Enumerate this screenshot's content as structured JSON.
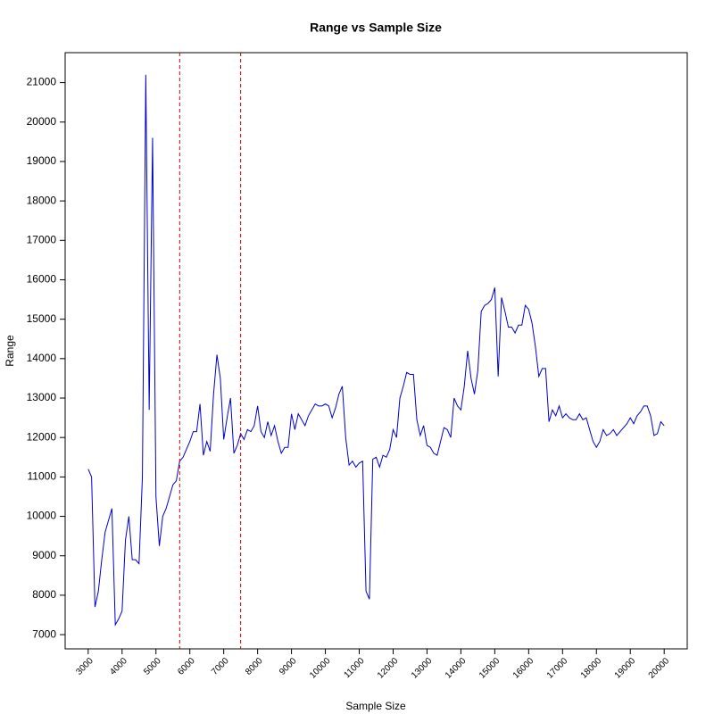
{
  "chart_data": {
    "type": "line",
    "title": "Range vs Sample Size",
    "x_label": "Sample Size",
    "y_label": "Range",
    "x": [
      3000,
      3100,
      3200,
      3300,
      3400,
      3500,
      3600,
      3700,
      3800,
      3900,
      4000,
      4100,
      4200,
      4300,
      4400,
      4500,
      4600,
      4700,
      4800,
      4900,
      5000,
      5100,
      5200,
      5300,
      5400,
      5500,
      5600,
      5700,
      5800,
      5900,
      6000,
      6100,
      6200,
      6300,
      6400,
      6500,
      6600,
      6700,
      6800,
      6900,
      7000,
      7100,
      7200,
      7300,
      7400,
      7500,
      7600,
      7700,
      7800,
      7900,
      8000,
      8100,
      8200,
      8300,
      8400,
      8500,
      8600,
      8700,
      8800,
      8900,
      9000,
      9100,
      9200,
      9300,
      9400,
      9500,
      9600,
      9700,
      9800,
      9900,
      10000,
      10100,
      10200,
      10300,
      10400,
      10500,
      10600,
      10700,
      10800,
      10900,
      11000,
      11100,
      11200,
      11300,
      11400,
      11500,
      11600,
      11700,
      11800,
      11900,
      12000,
      12100,
      12200,
      12300,
      12400,
      12500,
      12600,
      12700,
      12800,
      12900,
      13000,
      13100,
      13200,
      13300,
      13400,
      13500,
      13600,
      13700,
      13800,
      13900,
      14000,
      14100,
      14200,
      14300,
      14400,
      14500,
      14600,
      14700,
      14800,
      14900,
      15000,
      15100,
      15200,
      15300,
      15400,
      15500,
      15600,
      15700,
      15800,
      15900,
      16000,
      16100,
      16200,
      16300,
      16400,
      16500,
      16600,
      16700,
      16800,
      16900,
      17000,
      17100,
      17200,
      17300,
      17400,
      17500,
      17600,
      17700,
      17800,
      17900,
      18000,
      18100,
      18200,
      18300,
      18400,
      18500,
      18600,
      18700,
      18800,
      18900,
      19000,
      19100,
      19200,
      19300,
      19400,
      19500,
      19600,
      19700,
      19800,
      19900,
      20000
    ],
    "series": [
      {
        "color": "#0000cc",
        "values": [
          11200,
          11000,
          7700,
          8100,
          8900,
          9600,
          9900,
          10200,
          7250,
          7400,
          7600,
          9400,
          10000,
          8900,
          8900,
          8800,
          11000,
          21200,
          12700,
          19600,
          10500,
          9250,
          10000,
          10200,
          10500,
          10800,
          10900,
          11400,
          11500,
          11700,
          11900,
          12150,
          12150,
          12850,
          11550,
          11900,
          11650,
          13100,
          14100,
          13500,
          11950,
          12500,
          13000,
          11600,
          11800,
          12100,
          11950,
          12200,
          12150,
          12300,
          12800,
          12150,
          12000,
          12400,
          12050,
          12300,
          11900,
          11600,
          11750,
          11750,
          12600,
          12200,
          12600,
          12450,
          12300,
          12550,
          12700,
          12850,
          12800,
          12800,
          12850,
          12800,
          12500,
          12750,
          13100,
          13300,
          12000,
          11300,
          11400,
          11250,
          11350,
          11400,
          8100,
          7900,
          11450,
          11500,
          11250,
          11550,
          11500,
          11700,
          12200,
          12000,
          13000,
          13300,
          13650,
          13600,
          13600,
          12450,
          12050,
          12300,
          11800,
          11750,
          11600,
          11550,
          11900,
          12250,
          12200,
          12000,
          13000,
          12800,
          12700,
          13300,
          14200,
          13500,
          13100,
          13700,
          15200,
          15350,
          15400,
          15500,
          15800,
          13550,
          15550,
          15200,
          14800,
          14800,
          14650,
          14850,
          14850,
          15350,
          15250,
          14900,
          14300,
          13550,
          13750,
          13750,
          12400,
          12700,
          12550,
          12800,
          12500,
          12600,
          12500,
          12450,
          12450,
          12600,
          12450,
          12500,
          12200,
          11900,
          11750,
          11900,
          12200,
          12050,
          12100,
          12200,
          12050,
          12150,
          12250,
          12350,
          12500,
          12350,
          12550,
          12650,
          12800,
          12800,
          12550,
          12050,
          12100,
          12400,
          12300
        ]
      }
    ],
    "vlines": [
      5700,
      7500
    ],
    "vline_color": "#cc0000",
    "xlim": [
      2320,
      20680
    ],
    "xticks": [
      3000,
      4000,
      5000,
      6000,
      7000,
      8000,
      9000,
      10000,
      11000,
      12000,
      13000,
      14000,
      15000,
      16000,
      17000,
      18000,
      19000,
      20000
    ],
    "ylim": [
      6640,
      21760
    ],
    "yticks": [
      7000,
      8000,
      9000,
      10000,
      11000,
      12000,
      13000,
      14000,
      15000,
      16000,
      17000,
      18000,
      19000,
      20000,
      21000
    ],
    "grid": false
  }
}
